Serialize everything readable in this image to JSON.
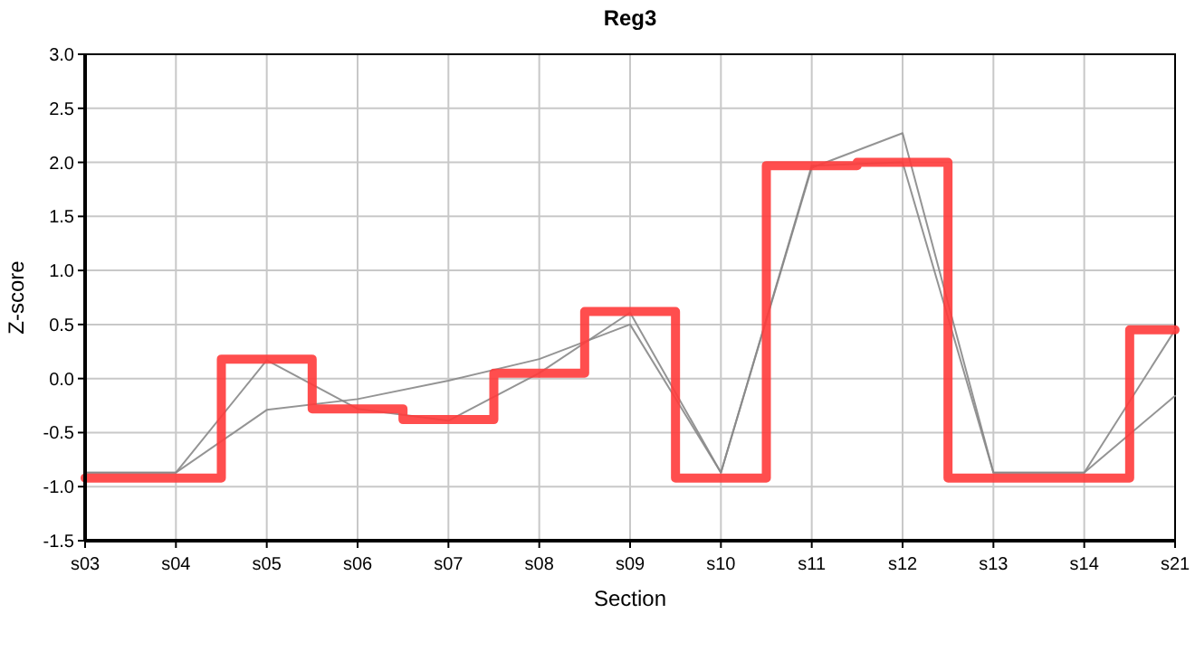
{
  "chart_data": {
    "type": "line",
    "title": "Reg3",
    "xlabel": "Section",
    "ylabel": "Z-score",
    "categories": [
      "s03",
      "s04",
      "s05",
      "s06",
      "s07",
      "s08",
      "s09",
      "s10",
      "s11",
      "s12",
      "s13",
      "s14",
      "s21"
    ],
    "series": [
      {
        "color": "#888888",
        "values": [
          -0.87,
          -0.87,
          -0.29,
          -0.19,
          -0.02,
          0.18,
          0.5,
          -0.87,
          1.95,
          2.27,
          -0.87,
          -0.87,
          -0.16
        ]
      },
      {
        "color": "#888888",
        "values": [
          -0.87,
          -0.87,
          0.17,
          -0.28,
          -0.39,
          0.05,
          0.61,
          -0.87,
          1.97,
          2.0,
          -0.87,
          -0.87,
          0.45
        ]
      },
      {
        "type": "step",
        "color": "#ff3b3b",
        "values": [
          -0.92,
          -0.92,
          0.18,
          -0.28,
          -0.38,
          0.05,
          0.62,
          -0.92,
          1.97,
          2.0,
          -0.92,
          -0.92,
          0.45
        ]
      }
    ],
    "ylim": [
      -1.5,
      3.0
    ],
    "yticks": [
      {
        "value": -1.5,
        "label": "-1.5"
      },
      {
        "value": -1,
        "label": "-1.0"
      },
      {
        "value": -0.5,
        "label": "-0.5"
      },
      {
        "value": 0,
        "label": "0.0"
      },
      {
        "value": 0.5,
        "label": "0.5"
      },
      {
        "value": 1,
        "label": "1.0"
      },
      {
        "value": 1.5,
        "label": "1.5"
      },
      {
        "value": 2,
        "label": "2.0"
      },
      {
        "value": 2.5,
        "label": "2.5"
      },
      {
        "value": 3,
        "label": "3.0"
      }
    ],
    "grid": true,
    "marker": "none",
    "line_style": "solid"
  }
}
